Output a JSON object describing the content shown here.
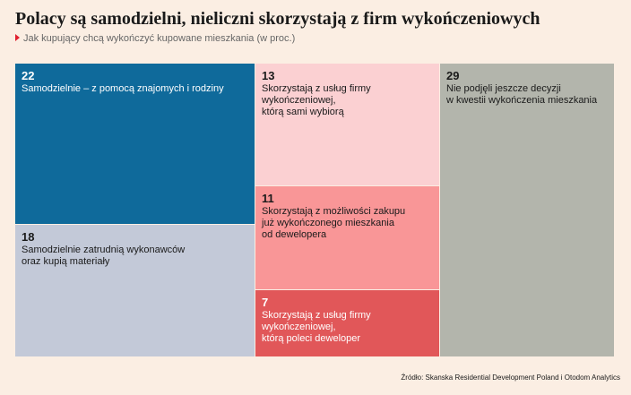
{
  "title": "Polacy są samodzielni, nieliczni skorzystają z firm wykończeniowych",
  "subtitle": "Jak kupujący chcą wykończyć kupowane mieszkania (w proc.)",
  "source": "Źródło: Skanska Residential Development Poland i Otodom Analytics",
  "chart_data": {
    "type": "treemap",
    "title": "Polacy są samodzielni, nieliczni skorzystają z firm wykończeniowych",
    "subtitle": "Jak kupujący chcą wykończyć kupowane mieszkania (w proc.)",
    "unit": "%",
    "items": [
      {
        "value": 22,
        "label": "Samodzielnie – z pomocą znajomych i rodziny",
        "color": "#0f6a9b",
        "text_color": "#ffffff"
      },
      {
        "value": 18,
        "label": "Samodzielnie zatrudnią wykonawców\noraz kupią materiały",
        "color": "#c3c9d8",
        "text_color": "#1a1a1a"
      },
      {
        "value": 13,
        "label": "Skorzystają z usług firmy wykończeniowej,\nktórą sami wybiorą",
        "color": "#fbd0d2",
        "text_color": "#1a1a1a"
      },
      {
        "value": 11,
        "label": "Skorzystają z możliwości zakupu\njuż wykończonego mieszkania\nod dewelopera",
        "color": "#f99697",
        "text_color": "#1a1a1a"
      },
      {
        "value": 7,
        "label": "Skorzystają z usług firmy wykończeniowej,\nktórą poleci deweloper",
        "color": "#e15759",
        "text_color": "#ffffff"
      },
      {
        "value": 29,
        "label": "Nie podjęli jeszcze decyzji\nw kwestii wykończenia mieszkania",
        "color": "#b3b5ac",
        "text_color": "#1a1a1a"
      }
    ]
  }
}
